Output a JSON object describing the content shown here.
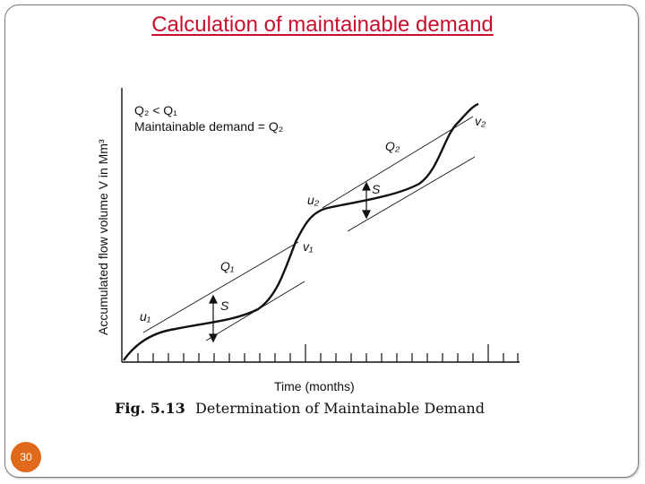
{
  "slide": {
    "title": "Calculation of maintainable demand",
    "page_number": "30"
  },
  "figure": {
    "legend_line1": "Q₂ < Q₁",
    "legend_line2": "Maintainable demand = Q₂",
    "y_axis_label": "Accumulated flow volume V in Mm³",
    "x_axis_label": "Time (months)",
    "caption_number": "Fig. 5.13",
    "caption_text": "Determination of Maintainable Demand",
    "labels": {
      "u1": "u₁",
      "u2": "u₂",
      "v1": "v₁",
      "v2": "v₂",
      "q1": "Q₁",
      "q2": "Q₂",
      "s1": "S",
      "s2": "S"
    }
  }
}
